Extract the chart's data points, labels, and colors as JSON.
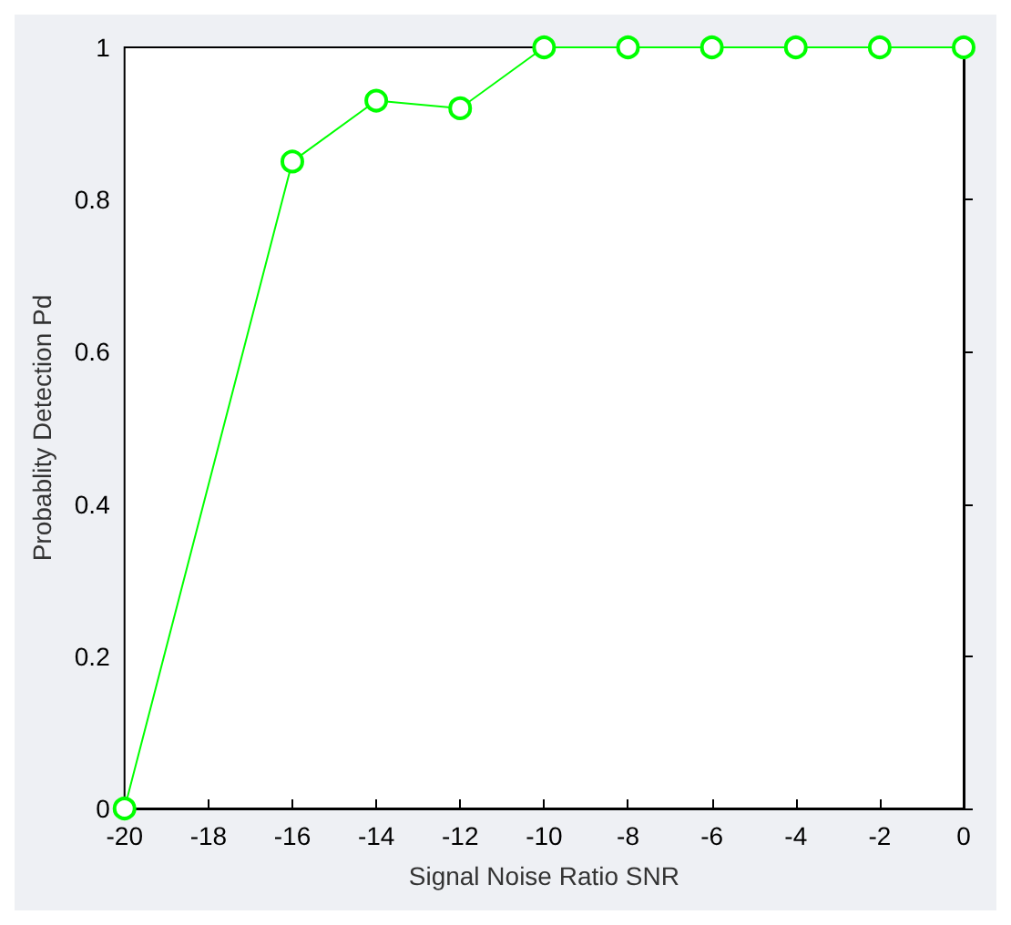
{
  "chart_data": {
    "type": "line",
    "xlabel": "Signal Noise Ratio SNR",
    "ylabel": "Probablity Detection Pd",
    "x": [
      -20,
      -16,
      -14,
      -12,
      -10,
      -8,
      -6,
      -4,
      -2,
      0
    ],
    "series": [
      {
        "color": "#00ff00",
        "values": [
          0,
          0.85,
          0.93,
          0.92,
          1,
          1,
          1,
          1,
          1,
          1
        ]
      }
    ],
    "xlim": [
      -20,
      0
    ],
    "xticks": [
      -20,
      -18,
      -16,
      -14,
      -12,
      -10,
      -8,
      -6,
      -4,
      -2,
      0
    ],
    "ylim": [
      0,
      1
    ],
    "yticks": [
      0,
      0.2,
      0.4,
      0.6,
      0.8,
      1
    ],
    "grid": false,
    "marker": "circle",
    "line_style": "solid"
  }
}
